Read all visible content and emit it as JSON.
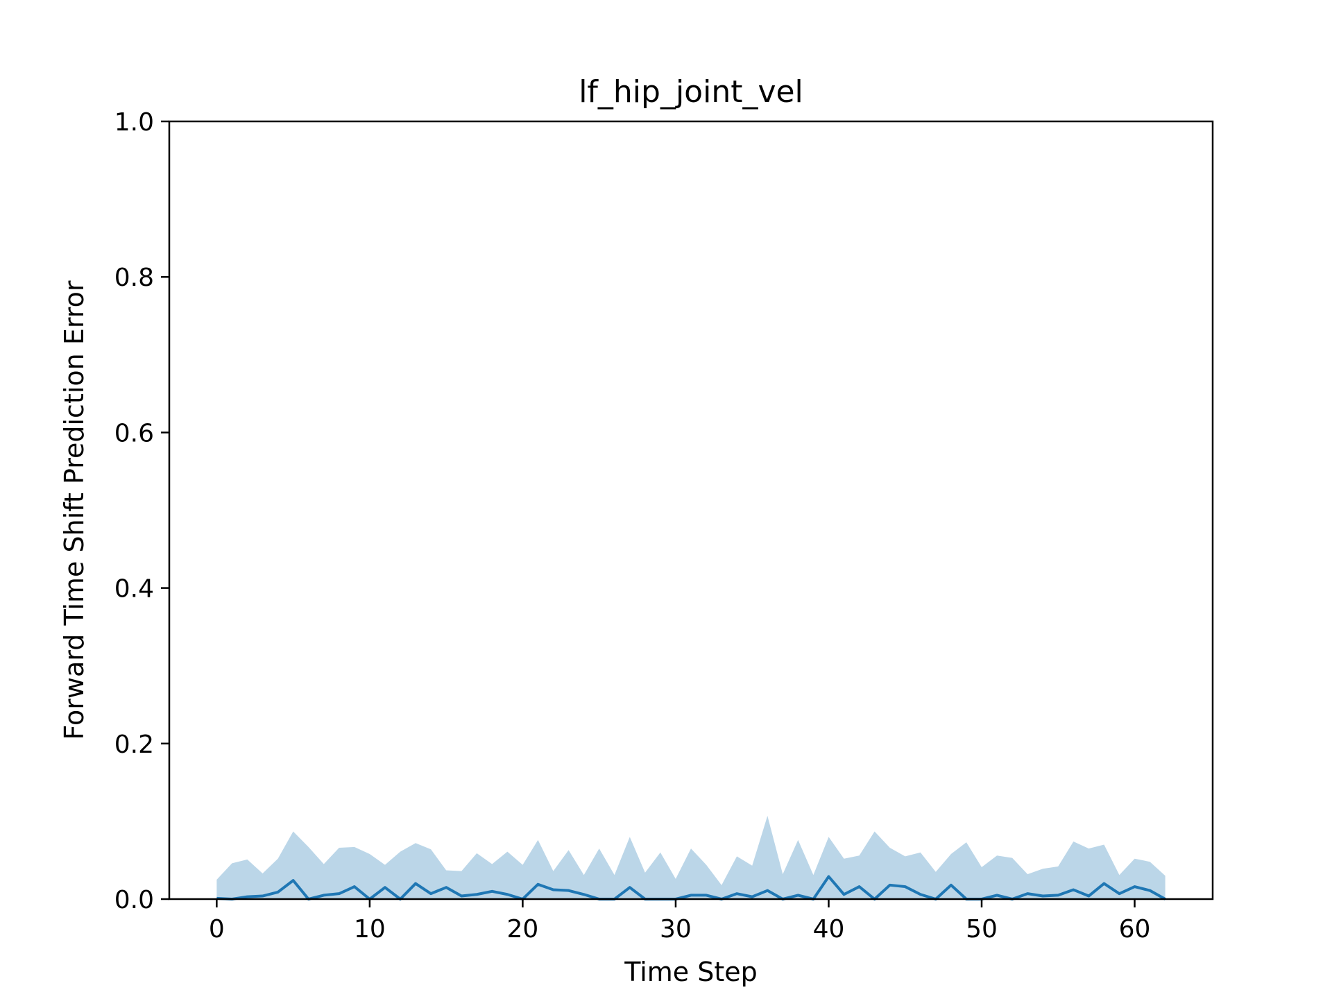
{
  "chart_data": {
    "type": "line",
    "title": "lf_hip_joint_vel",
    "xlabel": "Time Step",
    "ylabel": "Forward Time Shift Prediction Error",
    "xlim": [
      -3.1,
      65.1
    ],
    "ylim": [
      0.0,
      1.0
    ],
    "xticks": [
      0,
      10,
      20,
      30,
      40,
      50,
      60
    ],
    "xtick_labels": [
      "0",
      "10",
      "20",
      "30",
      "40",
      "50",
      "60"
    ],
    "yticks": [
      0.0,
      0.2,
      0.4,
      0.6,
      0.8,
      1.0
    ],
    "ytick_labels": [
      "0.0",
      "0.2",
      "0.4",
      "0.6",
      "0.8",
      "1.0"
    ],
    "grid": false,
    "colors": {
      "line": "#1f77b4",
      "band": "#1f77b4"
    },
    "x": [
      0,
      1,
      2,
      3,
      4,
      5,
      6,
      7,
      8,
      9,
      10,
      11,
      12,
      13,
      14,
      15,
      16,
      17,
      18,
      19,
      20,
      21,
      22,
      23,
      24,
      25,
      26,
      27,
      28,
      29,
      30,
      31,
      32,
      33,
      34,
      35,
      36,
      37,
      38,
      39,
      40,
      41,
      42,
      43,
      44,
      45,
      46,
      47,
      48,
      49,
      50,
      51,
      52,
      53,
      54,
      55,
      56,
      57,
      58,
      59,
      60,
      61,
      62
    ],
    "series": [
      {
        "type": "line",
        "values": [
          0.001,
          0.0,
          0.003,
          0.004,
          0.009,
          0.024,
          0.0,
          0.005,
          0.007,
          0.016,
          0.0,
          0.015,
          0.0,
          0.02,
          0.007,
          0.015,
          0.004,
          0.006,
          0.01,
          0.006,
          0.0,
          0.019,
          0.012,
          0.011,
          0.006,
          0.0,
          0.0,
          0.015,
          0.0,
          0.0,
          0.0,
          0.005,
          0.005,
          0.0,
          0.007,
          0.003,
          0.011,
          0.0,
          0.005,
          0.0,
          0.029,
          0.006,
          0.016,
          0.0,
          0.018,
          0.016,
          0.006,
          0.0,
          0.018,
          0.0,
          0.0,
          0.005,
          0.0,
          0.007,
          0.004,
          0.005,
          0.012,
          0.004,
          0.02,
          0.007,
          0.016,
          0.011,
          0.0
        ]
      },
      {
        "type": "band",
        "lower": [
          0.0,
          0.0,
          0.0,
          0.0,
          0.0,
          0.0,
          0.0,
          0.0,
          0.0,
          0.0,
          0.0,
          0.0,
          0.0,
          0.0,
          0.0,
          0.0,
          0.0,
          0.0,
          0.0,
          0.0,
          0.0,
          0.0,
          0.0,
          0.0,
          0.0,
          0.0,
          0.0,
          0.0,
          0.0,
          0.0,
          0.0,
          0.0,
          0.0,
          0.0,
          0.0,
          0.0,
          0.0,
          0.0,
          0.0,
          0.0,
          0.0,
          0.0,
          0.0,
          0.0,
          0.0,
          0.0,
          0.0,
          0.0,
          0.0,
          0.0,
          0.0,
          0.0,
          0.0,
          0.0,
          0.0,
          0.0,
          0.0,
          0.0,
          0.0,
          0.0,
          0.0,
          0.0,
          0.0
        ],
        "upper": [
          0.025,
          0.046,
          0.051,
          0.033,
          0.052,
          0.087,
          0.067,
          0.045,
          0.066,
          0.067,
          0.058,
          0.044,
          0.061,
          0.072,
          0.064,
          0.037,
          0.036,
          0.059,
          0.045,
          0.061,
          0.044,
          0.076,
          0.036,
          0.063,
          0.031,
          0.065,
          0.031,
          0.08,
          0.034,
          0.06,
          0.026,
          0.065,
          0.044,
          0.018,
          0.055,
          0.043,
          0.107,
          0.032,
          0.076,
          0.031,
          0.08,
          0.052,
          0.056,
          0.087,
          0.066,
          0.055,
          0.06,
          0.035,
          0.058,
          0.073,
          0.041,
          0.056,
          0.053,
          0.032,
          0.039,
          0.042,
          0.074,
          0.065,
          0.07,
          0.031,
          0.052,
          0.048,
          0.03
        ]
      }
    ]
  }
}
